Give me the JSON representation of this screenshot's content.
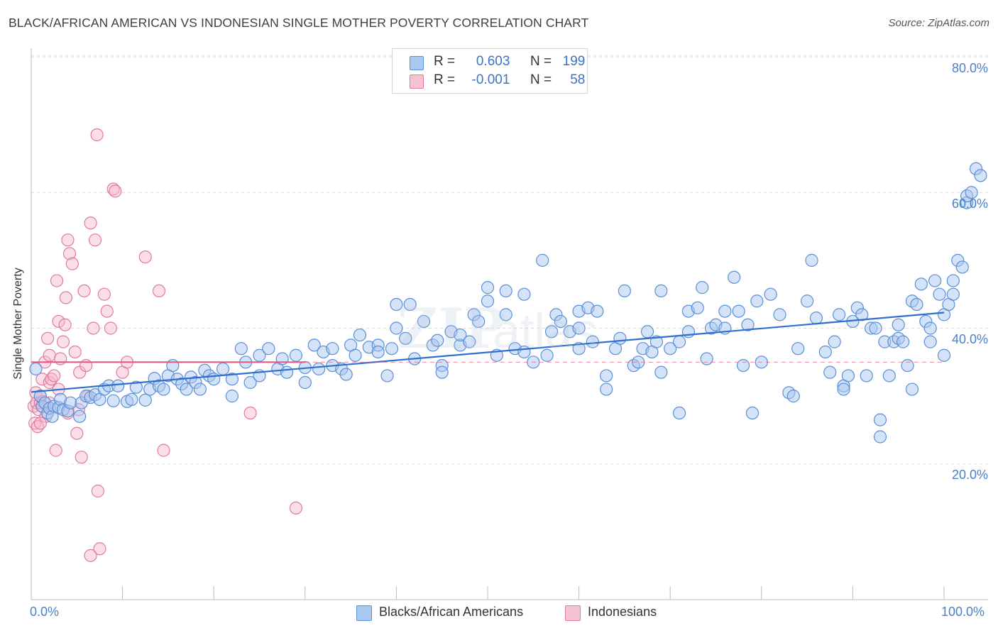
{
  "title": "BLACK/AFRICAN AMERICAN VS INDONESIAN SINGLE MOTHER POVERTY CORRELATION CHART",
  "source": "Source: ZipAtlas.com",
  "legend_top": {
    "rows": [
      {
        "r_label": "R =",
        "r_value": "0.603",
        "n_label": "N =",
        "n_value": "199"
      },
      {
        "r_label": "R =",
        "r_value": "-0.001",
        "n_label": "N =",
        "n_value": "58"
      }
    ]
  },
  "legend_bottom": [
    "Blacks/African Americans",
    "Indonesians"
  ],
  "colors": {
    "blue_fill": "#a9c8f0",
    "blue_stroke": "#5b8fd6",
    "blue_line": "#2f6fcf",
    "pink_fill": "#f6b9cc",
    "pink_stroke": "#e07ba0",
    "pink_line": "#e25a86",
    "grid": "#dcdcdc",
    "tick_text": "#4a80c8"
  },
  "chart_data": {
    "type": "scatter",
    "title": "BLACK/AFRICAN AMERICAN VS INDONESIAN SINGLE MOTHER POVERTY CORRELATION CHART",
    "xlabel": "",
    "ylabel": "Single Mother Poverty",
    "xlim": [
      0,
      100
    ],
    "ylim": [
      0,
      82
    ],
    "x_tick_labels": [
      "0.0%",
      "100.0%"
    ],
    "y_tick_labels": [
      "20.0%",
      "40.0%",
      "60.0%",
      "80.0%"
    ],
    "y_ticks": [
      20,
      40,
      60,
      80
    ],
    "grid": true,
    "legend_placement": "top-center",
    "series": [
      {
        "name": "Blacks/African Americans",
        "trend": {
          "x": [
            0,
            100
          ],
          "y": [
            30.6,
            42.3
          ]
        },
        "points": [
          [
            0.5,
            34
          ],
          [
            1,
            30
          ],
          [
            1.2,
            28.5
          ],
          [
            1.5,
            29
          ],
          [
            1.8,
            27.5
          ],
          [
            2,
            28.2
          ],
          [
            2.3,
            27
          ],
          [
            2.5,
            28.5
          ],
          [
            3,
            28.3
          ],
          [
            3.2,
            29.5
          ],
          [
            3.5,
            28
          ],
          [
            4,
            27.8
          ],
          [
            4.3,
            29
          ],
          [
            5.3,
            27
          ],
          [
            5.5,
            29
          ],
          [
            6,
            30
          ],
          [
            6.5,
            29.8
          ],
          [
            7,
            30.2
          ],
          [
            7.5,
            29.5
          ],
          [
            8,
            31
          ],
          [
            8.5,
            31.5
          ],
          [
            9,
            29.3
          ],
          [
            9.5,
            31.5
          ],
          [
            10.5,
            29.2
          ],
          [
            11,
            29.5
          ],
          [
            11.5,
            31.3
          ],
          [
            12.5,
            29.4
          ],
          [
            13,
            31
          ],
          [
            13.5,
            32.6
          ],
          [
            14,
            31.5
          ],
          [
            14.5,
            31
          ],
          [
            15,
            33
          ],
          [
            15.5,
            34.5
          ],
          [
            16,
            32.5
          ],
          [
            16.5,
            31.8
          ],
          [
            17,
            31
          ],
          [
            17.5,
            32.8
          ],
          [
            18,
            32
          ],
          [
            18.5,
            31
          ],
          [
            19,
            33.8
          ],
          [
            19.5,
            33
          ],
          [
            20,
            32.5
          ],
          [
            21,
            34
          ],
          [
            22,
            30
          ],
          [
            22,
            32.5
          ],
          [
            23,
            37
          ],
          [
            23.5,
            35
          ],
          [
            24,
            32
          ],
          [
            25,
            33
          ],
          [
            25,
            36
          ],
          [
            26,
            37
          ],
          [
            27,
            34
          ],
          [
            27.5,
            35.5
          ],
          [
            28,
            33.5
          ],
          [
            29,
            36
          ],
          [
            30,
            32
          ],
          [
            30,
            34.2
          ],
          [
            31,
            37.5
          ],
          [
            31.5,
            34
          ],
          [
            32,
            36.5
          ],
          [
            33,
            34.5
          ],
          [
            33,
            37
          ],
          [
            34,
            34
          ],
          [
            34.5,
            33.2
          ],
          [
            35,
            37.5
          ],
          [
            35.5,
            36
          ],
          [
            36,
            39
          ],
          [
            37,
            37.2
          ],
          [
            38,
            37.5
          ],
          [
            38,
            36.5
          ],
          [
            39,
            33
          ],
          [
            39.5,
            37
          ],
          [
            40,
            43.5
          ],
          [
            40,
            40
          ],
          [
            41,
            38.5
          ],
          [
            41.5,
            43.5
          ],
          [
            42,
            35.5
          ],
          [
            43,
            41
          ],
          [
            44,
            37.5
          ],
          [
            44.5,
            38.2
          ],
          [
            45,
            34.5
          ],
          [
            45,
            33.5
          ],
          [
            46,
            39.5
          ],
          [
            47,
            37.5
          ],
          [
            47,
            39
          ],
          [
            48,
            38
          ],
          [
            48.5,
            42
          ],
          [
            49,
            41
          ],
          [
            50,
            46
          ],
          [
            50,
            44
          ],
          [
            51,
            36
          ],
          [
            52,
            45.5
          ],
          [
            52,
            42
          ],
          [
            53,
            37
          ],
          [
            54,
            45
          ],
          [
            54,
            36.5
          ],
          [
            55,
            35
          ],
          [
            56,
            50
          ],
          [
            56.5,
            36
          ],
          [
            57,
            39.5
          ],
          [
            57.5,
            42
          ],
          [
            58,
            41
          ],
          [
            59,
            39.5
          ],
          [
            60,
            42.5
          ],
          [
            60,
            40
          ],
          [
            60,
            37
          ],
          [
            61,
            43
          ],
          [
            61.5,
            38
          ],
          [
            62,
            42.5
          ],
          [
            63,
            33
          ],
          [
            63,
            31
          ],
          [
            64,
            37
          ],
          [
            64.5,
            38.5
          ],
          [
            65,
            45.5
          ],
          [
            66,
            34.5
          ],
          [
            66.5,
            35
          ],
          [
            67,
            37
          ],
          [
            67.5,
            39.5
          ],
          [
            68,
            36.5
          ],
          [
            68.5,
            38
          ],
          [
            69,
            33.5
          ],
          [
            69,
            45.5
          ],
          [
            70,
            37
          ],
          [
            71,
            38
          ],
          [
            71,
            27.5
          ],
          [
            72,
            42.5
          ],
          [
            72,
            39.5
          ],
          [
            73,
            43
          ],
          [
            73.5,
            46
          ],
          [
            74,
            35.5
          ],
          [
            74.5,
            40
          ],
          [
            75,
            40.5
          ],
          [
            76,
            42.5
          ],
          [
            76,
            40
          ],
          [
            77,
            47.5
          ],
          [
            77.5,
            42.5
          ],
          [
            78,
            34.5
          ],
          [
            78.5,
            40.5
          ],
          [
            79,
            27.5
          ],
          [
            79.5,
            44
          ],
          [
            80,
            35
          ],
          [
            81,
            45
          ],
          [
            82,
            42
          ],
          [
            83,
            30.5
          ],
          [
            83.5,
            30
          ],
          [
            84,
            37
          ],
          [
            85,
            44
          ],
          [
            85.5,
            50
          ],
          [
            86,
            41.5
          ],
          [
            87,
            36.5
          ],
          [
            87.5,
            33.5
          ],
          [
            88,
            38
          ],
          [
            88.5,
            42
          ],
          [
            89,
            31.5
          ],
          [
            89,
            31
          ],
          [
            89.5,
            33
          ],
          [
            90,
            41
          ],
          [
            90.5,
            43
          ],
          [
            91,
            42
          ],
          [
            91.5,
            33
          ],
          [
            92,
            40
          ],
          [
            92.5,
            40
          ],
          [
            93,
            26.5
          ],
          [
            93,
            24
          ],
          [
            93.5,
            38
          ],
          [
            94,
            33
          ],
          [
            94.5,
            38
          ],
          [
            95,
            38.5
          ],
          [
            95,
            40.5
          ],
          [
            95.5,
            38
          ],
          [
            96,
            34.5
          ],
          [
            96.5,
            31
          ],
          [
            96.5,
            44
          ],
          [
            97,
            43.5
          ],
          [
            97.5,
            46.5
          ],
          [
            98,
            41
          ],
          [
            98.5,
            40
          ],
          [
            98.5,
            38
          ],
          [
            99,
            47
          ],
          [
            99.5,
            45
          ],
          [
            100,
            36
          ],
          [
            100,
            42
          ],
          [
            100.5,
            43.5
          ],
          [
            101,
            45
          ],
          [
            101,
            47
          ],
          [
            101.5,
            50
          ],
          [
            102,
            49
          ],
          [
            102.5,
            58.5
          ],
          [
            102.5,
            59.5
          ],
          [
            103,
            60
          ],
          [
            103.5,
            63.5
          ],
          [
            104,
            62.5
          ]
        ]
      },
      {
        "name": "Indonesians",
        "trend": {
          "x": [
            0,
            30
          ],
          "y": [
            35,
            35
          ]
        },
        "points": [
          [
            0.3,
            28.5
          ],
          [
            0.4,
            26
          ],
          [
            0.5,
            30.5
          ],
          [
            0.6,
            29
          ],
          [
            0.7,
            25.5
          ],
          [
            0.8,
            28
          ],
          [
            1,
            30
          ],
          [
            1,
            29
          ],
          [
            1.2,
            32.5
          ],
          [
            1.3,
            29.2
          ],
          [
            1.5,
            35
          ],
          [
            1.6,
            27
          ],
          [
            1.8,
            38.5
          ],
          [
            2,
            32
          ],
          [
            2,
            36
          ],
          [
            2.2,
            32.5
          ],
          [
            2.5,
            33
          ],
          [
            2.7,
            22
          ],
          [
            2.8,
            47
          ],
          [
            3,
            41
          ],
          [
            3.2,
            35.5
          ],
          [
            3.5,
            38
          ],
          [
            3.7,
            40.5
          ],
          [
            3.8,
            44.5
          ],
          [
            4,
            53
          ],
          [
            4.2,
            51
          ],
          [
            4.5,
            49.5
          ],
          [
            4.8,
            36.5
          ],
          [
            5,
            24.5
          ],
          [
            5.2,
            28
          ],
          [
            5.3,
            33.5
          ],
          [
            5.5,
            21
          ],
          [
            5.8,
            45.5
          ],
          [
            6,
            34.5
          ],
          [
            6.2,
            30
          ],
          [
            6.5,
            55.5
          ],
          [
            6.8,
            40
          ],
          [
            7,
            53
          ],
          [
            7.2,
            68.5
          ],
          [
            7.3,
            16
          ],
          [
            7.5,
            7.5
          ],
          [
            8,
            45
          ],
          [
            8.3,
            42.5
          ],
          [
            8.7,
            40
          ],
          [
            9,
            60.5
          ],
          [
            9.2,
            60.2
          ],
          [
            10,
            33.5
          ],
          [
            10.5,
            35
          ],
          [
            12.5,
            50.5
          ],
          [
            14,
            45.5
          ],
          [
            14.5,
            22
          ],
          [
            24,
            27.5
          ],
          [
            29,
            13.5
          ],
          [
            6.5,
            6.5
          ],
          [
            1,
            26
          ],
          [
            2,
            29
          ],
          [
            3,
            31
          ],
          [
            4,
            27.5
          ]
        ]
      }
    ]
  }
}
